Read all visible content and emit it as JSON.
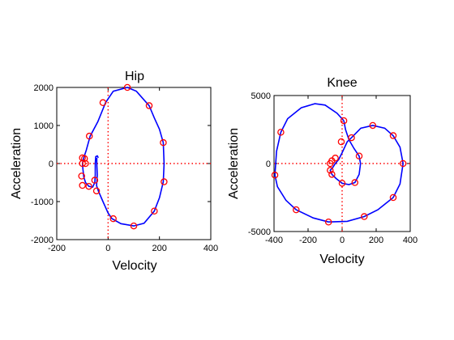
{
  "chart_data": [
    {
      "type": "line",
      "title": "Hip",
      "xlabel": "Velocity",
      "ylabel": "Acceleration",
      "xlim": [
        -200,
        400
      ],
      "ylim": [
        -2000,
        2000
      ],
      "xticks": [
        -200,
        0,
        200,
        400
      ],
      "yticks": [
        -2000,
        -1000,
        0,
        1000,
        2000
      ],
      "reference_lines": {
        "x": 0,
        "y": 0,
        "style": "dotted",
        "color": "#ff0000"
      },
      "grid": false,
      "line_color": "#0000ff",
      "marker_color": "#ff0000",
      "curve": [
        [
          -44,
          150
        ],
        [
          -44,
          0
        ],
        [
          -42,
          -300
        ],
        [
          -45,
          -580
        ],
        [
          -38,
          -720
        ],
        [
          -20,
          -1000
        ],
        [
          0,
          -1300
        ],
        [
          15,
          -1450
        ],
        [
          50,
          -1580
        ],
        [
          100,
          -1640
        ],
        [
          140,
          -1570
        ],
        [
          180,
          -1250
        ],
        [
          200,
          -900
        ],
        [
          215,
          -480
        ],
        [
          218,
          0
        ],
        [
          215,
          550
        ],
        [
          200,
          900
        ],
        [
          180,
          1200
        ],
        [
          160,
          1520
        ],
        [
          110,
          1900
        ],
        [
          75,
          2000
        ],
        [
          20,
          1900
        ],
        [
          -10,
          1600
        ],
        [
          -40,
          1100
        ],
        [
          -70,
          720
        ],
        [
          -85,
          350
        ],
        [
          -95,
          150
        ],
        [
          -100,
          0
        ],
        [
          -98,
          -150
        ],
        [
          -95,
          -350
        ],
        [
          -88,
          -500
        ],
        [
          -75,
          -600
        ],
        [
          -60,
          -620
        ],
        [
          -52,
          -500
        ],
        [
          -50,
          -300
        ],
        [
          -50,
          0
        ],
        [
          -48,
          180
        ],
        [
          -42,
          200
        ],
        [
          -38,
          150
        ]
      ],
      "markers": [
        [
          75,
          2000
        ],
        [
          160,
          1520
        ],
        [
          -20,
          1600
        ],
        [
          -73,
          720
        ],
        [
          215,
          550
        ],
        [
          -100,
          150
        ],
        [
          -92,
          130
        ],
        [
          -100,
          0
        ],
        [
          -88,
          0
        ],
        [
          -103,
          -330
        ],
        [
          -75,
          -600
        ],
        [
          -100,
          -575
        ],
        [
          -45,
          -720
        ],
        [
          -52,
          -440
        ],
        [
          218,
          -480
        ],
        [
          180,
          -1250
        ],
        [
          20,
          -1450
        ],
        [
          100,
          -1640
        ]
      ]
    },
    {
      "type": "line",
      "title": "Knee",
      "xlabel": "Velocity",
      "ylabel": "Acceleration",
      "xlim": [
        -400,
        400
      ],
      "ylim": [
        -5000,
        5000
      ],
      "xticks": [
        -400,
        -200,
        0,
        200,
        400
      ],
      "yticks": [
        -5000,
        0,
        5000
      ],
      "reference_lines": {
        "x": 0,
        "y": 0,
        "style": "dotted",
        "color": "#ff0000"
      },
      "grid": false,
      "line_color": "#0000ff",
      "marker_color": "#ff0000",
      "curve": [
        [
          10,
          3150
        ],
        [
          -30,
          3700
        ],
        [
          -100,
          4300
        ],
        [
          -160,
          4400
        ],
        [
          -240,
          4100
        ],
        [
          -320,
          3300
        ],
        [
          -360,
          2300
        ],
        [
          -385,
          900
        ],
        [
          -395,
          -850
        ],
        [
          -380,
          -1700
        ],
        [
          -330,
          -2700
        ],
        [
          -270,
          -3400
        ],
        [
          -170,
          -4000
        ],
        [
          -80,
          -4300
        ],
        [
          30,
          -4250
        ],
        [
          130,
          -3900
        ],
        [
          210,
          -3400
        ],
        [
          300,
          -2500
        ],
        [
          340,
          -1500
        ],
        [
          358,
          0
        ],
        [
          340,
          1200
        ],
        [
          300,
          2050
        ],
        [
          250,
          2600
        ],
        [
          180,
          2800
        ],
        [
          110,
          2600
        ],
        [
          55,
          1900
        ],
        [
          30,
          1600
        ],
        [
          0,
          800
        ],
        [
          -20,
          300
        ],
        [
          -40,
          0
        ],
        [
          -55,
          -300
        ],
        [
          -70,
          -500
        ],
        [
          -60,
          -800
        ],
        [
          -35,
          -1100
        ],
        [
          0,
          -1450
        ],
        [
          40,
          -1550
        ],
        [
          75,
          -1400
        ],
        [
          100,
          -800
        ],
        [
          108,
          0
        ],
        [
          100,
          550
        ],
        [
          70,
          1100
        ],
        [
          40,
          1750
        ],
        [
          20,
          2500
        ],
        [
          10,
          3150
        ]
      ],
      "markers": [
        [
          10,
          3150
        ],
        [
          -360,
          2300
        ],
        [
          -395,
          -850
        ],
        [
          -270,
          -3400
        ],
        [
          -80,
          -4300
        ],
        [
          130,
          -3900
        ],
        [
          300,
          -2500
        ],
        [
          358,
          0
        ],
        [
          300,
          2050
        ],
        [
          180,
          2800
        ],
        [
          55,
          1900
        ],
        [
          -5,
          1600
        ],
        [
          100,
          550
        ],
        [
          -40,
          400
        ],
        [
          -60,
          200
        ],
        [
          -70,
          0
        ],
        [
          -70,
          -500
        ],
        [
          -60,
          -800
        ],
        [
          0,
          -1450
        ],
        [
          75,
          -1400
        ]
      ]
    }
  ]
}
